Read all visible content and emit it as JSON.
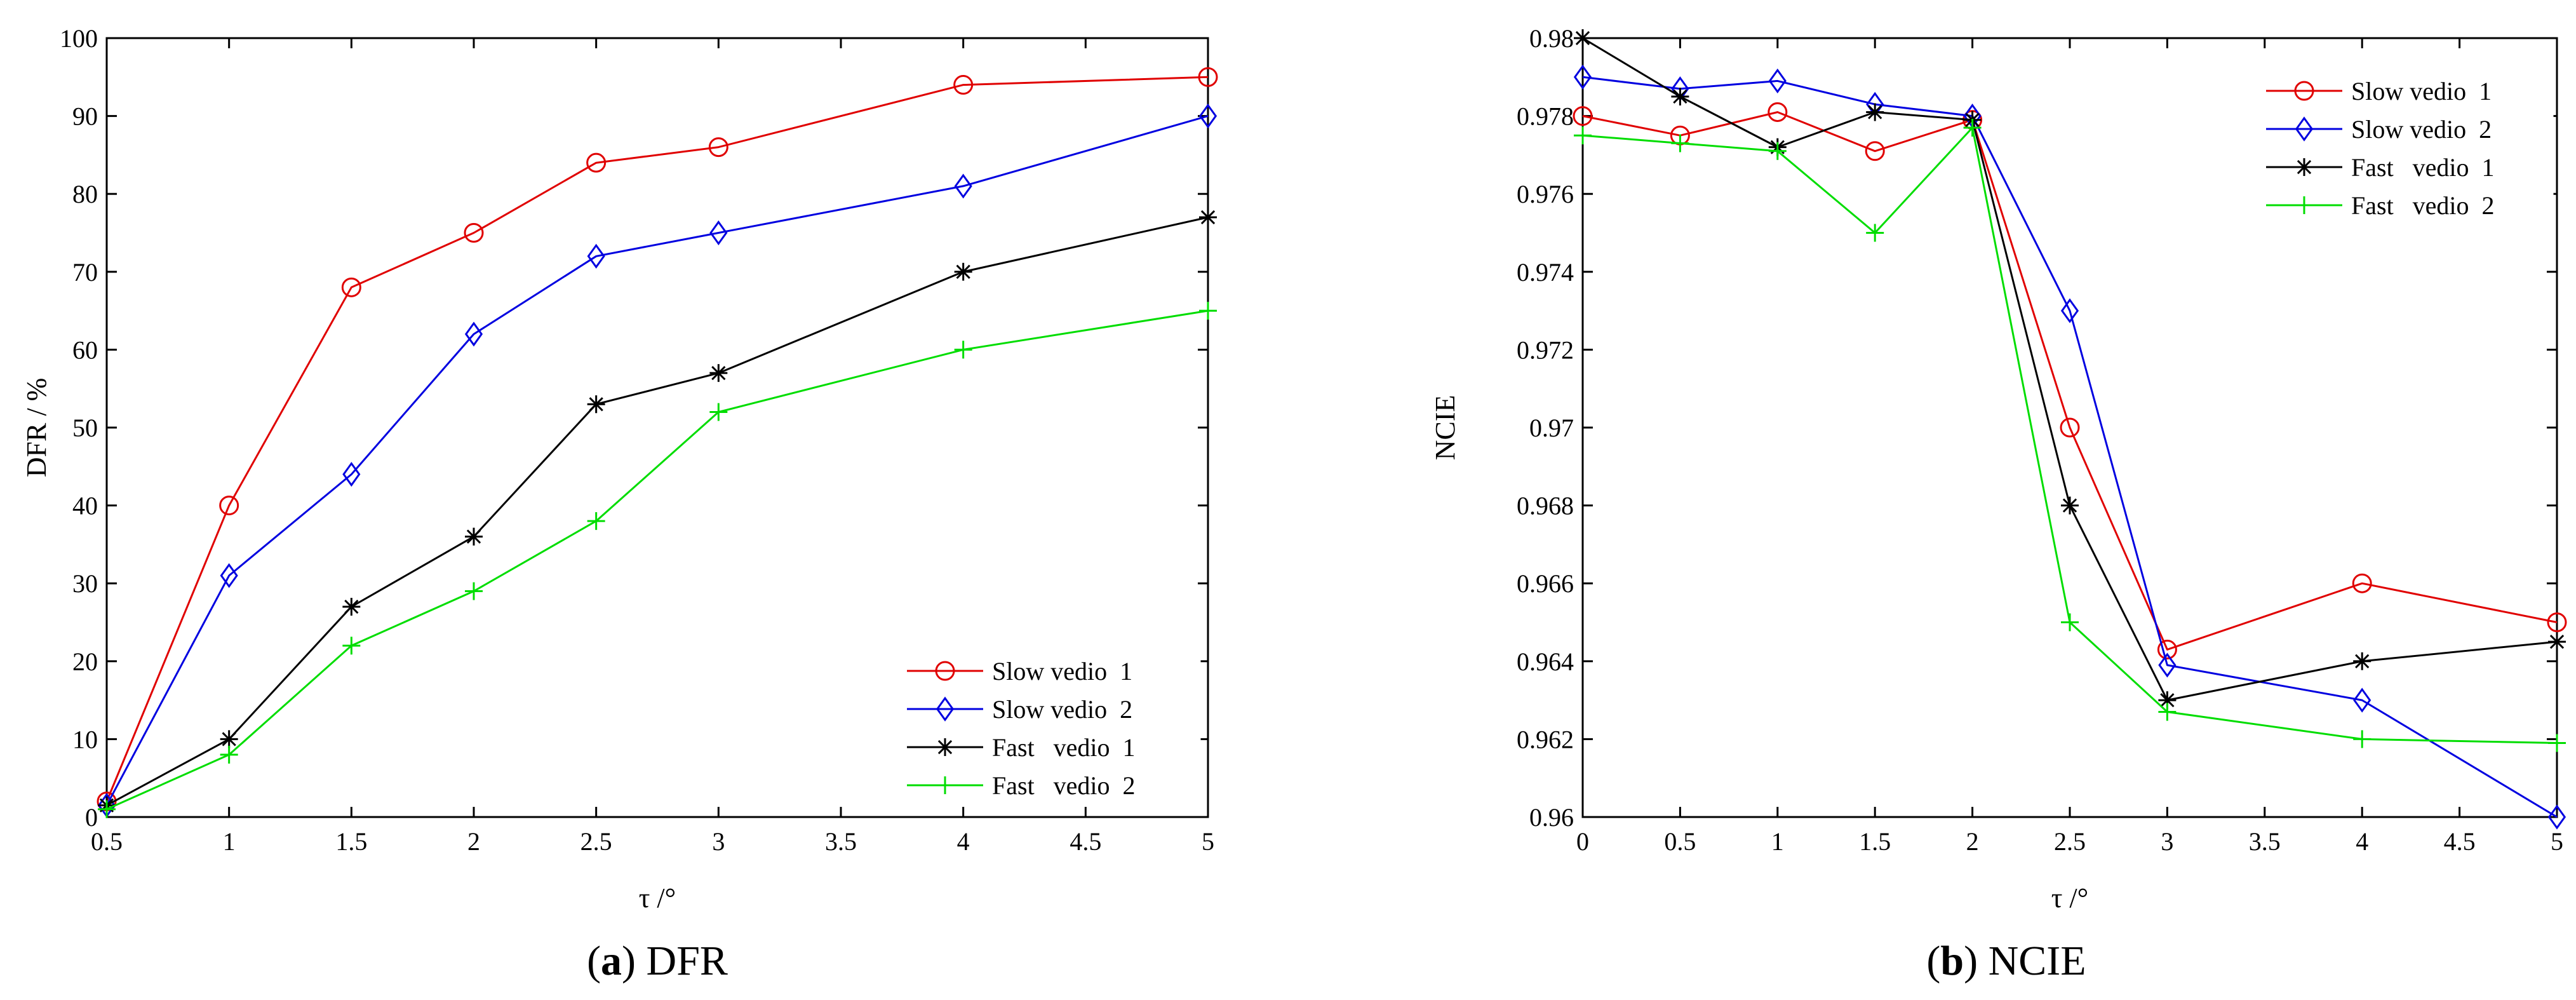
{
  "chart_data": [
    {
      "type": "line",
      "panel_letter": "a",
      "caption": "DFR",
      "xlabel": "τ /°",
      "ylabel": "DFR / %",
      "x_ticks": [
        "0.5",
        "1",
        "1.5",
        "2",
        "2.5",
        "3",
        "3.5",
        "4",
        "4.5",
        "5"
      ],
      "y_ticks": [
        "0",
        "10",
        "20",
        "30",
        "40",
        "50",
        "60",
        "70",
        "80",
        "90",
        "100"
      ],
      "xlim": [
        0.5,
        5
      ],
      "ylim": [
        0,
        100
      ],
      "grid": false,
      "legend_position": "bottom-right",
      "series": [
        {
          "name": "Slow vedio  1",
          "color": "#e00000",
          "marker": "circle",
          "x": [
            0.5,
            1,
            1.5,
            2,
            2.5,
            3,
            4,
            5
          ],
          "y": [
            2,
            40,
            68,
            75,
            84,
            86,
            94,
            95
          ]
        },
        {
          "name": "Slow vedio  2",
          "color": "#0000e0",
          "marker": "diamond",
          "x": [
            0.5,
            1,
            1.5,
            2,
            2.5,
            3,
            4,
            5
          ],
          "y": [
            1.5,
            31,
            44,
            62,
            72,
            75,
            81,
            90
          ]
        },
        {
          "name": "Fast   vedio  1",
          "color": "#000000",
          "marker": "asterisk",
          "x": [
            0.5,
            1,
            1.5,
            2,
            2.5,
            3,
            4,
            5
          ],
          "y": [
            1.5,
            10,
            27,
            36,
            53,
            57,
            70,
            77
          ]
        },
        {
          "name": "Fast   vedio  2",
          "color": "#00dd00",
          "marker": "plus",
          "x": [
            0.5,
            1,
            1.5,
            2,
            2.5,
            3,
            4,
            5
          ],
          "y": [
            1,
            8,
            22,
            29,
            38,
            52,
            60,
            65
          ]
        }
      ]
    },
    {
      "type": "line",
      "panel_letter": "b",
      "caption": "NCIE",
      "xlabel": "τ /°",
      "ylabel": "NCIE",
      "x_ticks": [
        "0",
        "0.5",
        "1",
        "1.5",
        "2",
        "2.5",
        "3",
        "3.5",
        "4",
        "4.5",
        "5"
      ],
      "y_ticks": [
        "0.96",
        "0.962",
        "0.964",
        "0.966",
        "0.968",
        "0.97",
        "0.972",
        "0.974",
        "0.976",
        "0.978",
        "0.98"
      ],
      "xlim": [
        0,
        5
      ],
      "ylim": [
        0.96,
        0.98
      ],
      "grid": false,
      "legend_position": "top-right",
      "series": [
        {
          "name": "Slow vedio  1",
          "color": "#e00000",
          "marker": "circle",
          "x": [
            0,
            0.5,
            1,
            1.5,
            2,
            2.5,
            3,
            4,
            5
          ],
          "y": [
            0.978,
            0.9775,
            0.9781,
            0.9771,
            0.9779,
            0.97,
            0.9643,
            0.966,
            0.965
          ]
        },
        {
          "name": "Slow vedio  2",
          "color": "#0000e0",
          "marker": "diamond",
          "x": [
            0,
            0.5,
            1,
            1.5,
            2,
            2.5,
            3,
            4,
            5
          ],
          "y": [
            0.979,
            0.9787,
            0.9789,
            0.9783,
            0.978,
            0.973,
            0.9639,
            0.963,
            0.96
          ]
        },
        {
          "name": "Fast   vedio  1",
          "color": "#000000",
          "marker": "asterisk",
          "x": [
            0,
            0.5,
            1,
            1.5,
            2,
            2.5,
            3,
            4,
            5
          ],
          "y": [
            0.98,
            0.9785,
            0.9772,
            0.9781,
            0.9779,
            0.968,
            0.963,
            0.964,
            0.9645
          ]
        },
        {
          "name": "Fast   vedio  2",
          "color": "#00dd00",
          "marker": "plus",
          "x": [
            0,
            0.5,
            1,
            1.5,
            2,
            2.5,
            3,
            4,
            5
          ],
          "y": [
            0.9775,
            0.9773,
            0.9771,
            0.975,
            0.9777,
            0.965,
            0.9627,
            0.962,
            0.9619
          ]
        }
      ]
    }
  ]
}
